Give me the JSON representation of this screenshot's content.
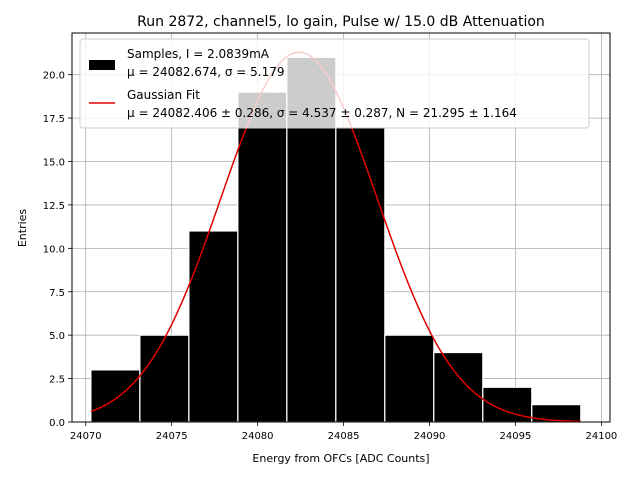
{
  "chart_data": {
    "type": "bar",
    "title": "Run 2872, channel5, lo gain, Pulse w/ 15.0 dB Attenuation",
    "xlabel": "Energy from OFCs [ADC Counts]",
    "ylabel": "Entries",
    "xlim": [
      24069.2,
      24100.5
    ],
    "ylim": [
      0,
      22.4
    ],
    "grid": true,
    "legend_position": "top-left",
    "xticks": [
      24070,
      24075,
      24080,
      24085,
      24090,
      24095,
      24100
    ],
    "xtick_labels": [
      "24070",
      "24075",
      "24080",
      "24085",
      "24090",
      "24095",
      "24100"
    ],
    "yticks": [
      0.0,
      2.5,
      5.0,
      7.5,
      10.0,
      12.5,
      15.0,
      17.5,
      20.0
    ],
    "ytick_labels": [
      "0.0",
      "2.5",
      "5.0",
      "7.5",
      "10.0",
      "12.5",
      "15.0",
      "17.5",
      "20.0"
    ],
    "bins": {
      "edges": [
        24070.3,
        24073.15,
        24076.0,
        24078.85,
        24081.7,
        24084.55,
        24087.4,
        24090.25,
        24093.1,
        24095.95,
        24098.8
      ],
      "values": [
        3,
        5,
        11,
        19,
        21,
        17,
        5,
        4,
        2,
        1
      ]
    },
    "series": [
      {
        "name": "Samples, I = 2.0839mA",
        "name_line2": "μ = 24082.674, σ = 5.179",
        "kind": "histogram",
        "color": "#000000"
      },
      {
        "name": "Gaussian Fit",
        "name_line2": "μ = 24082.406 ± 0.286, σ = 4.537 ± 0.287, N = 21.295 ± 1.164",
        "kind": "line",
        "color": "#e00000",
        "fit_params": {
          "mu": 24082.406,
          "sigma": 4.537,
          "N": 21.295
        },
        "x_range": [
          24070.3,
          24098.8
        ]
      }
    ]
  }
}
